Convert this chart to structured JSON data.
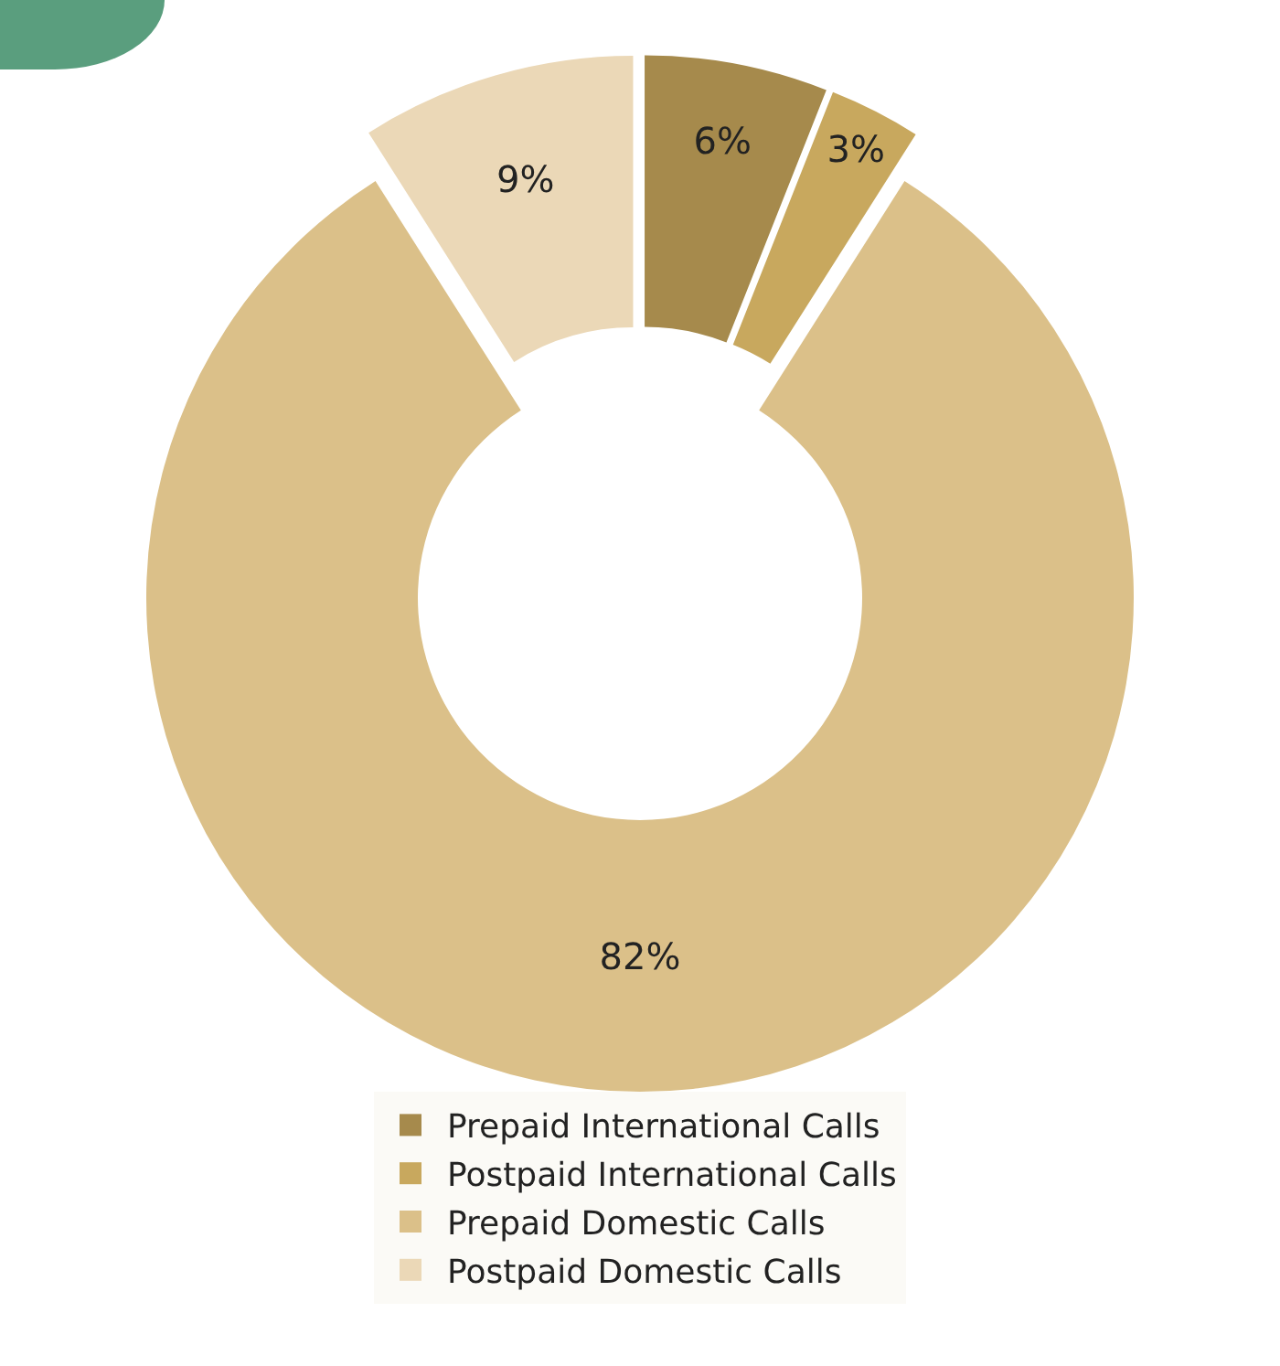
{
  "chart_data": {
    "type": "donut",
    "categories": [
      "Prepaid International Calls",
      "Postpaid International Calls",
      "Prepaid Domestic Calls",
      "Postpaid Domestic Calls"
    ],
    "values": [
      6,
      3,
      82,
      9
    ],
    "colors": [
      "#a68a4c",
      "#c8a85e",
      "#dbc089",
      "#ebd8b7"
    ],
    "value_labels": [
      "6%",
      "3%",
      "82%",
      "9%"
    ],
    "legend": "bottom"
  }
}
